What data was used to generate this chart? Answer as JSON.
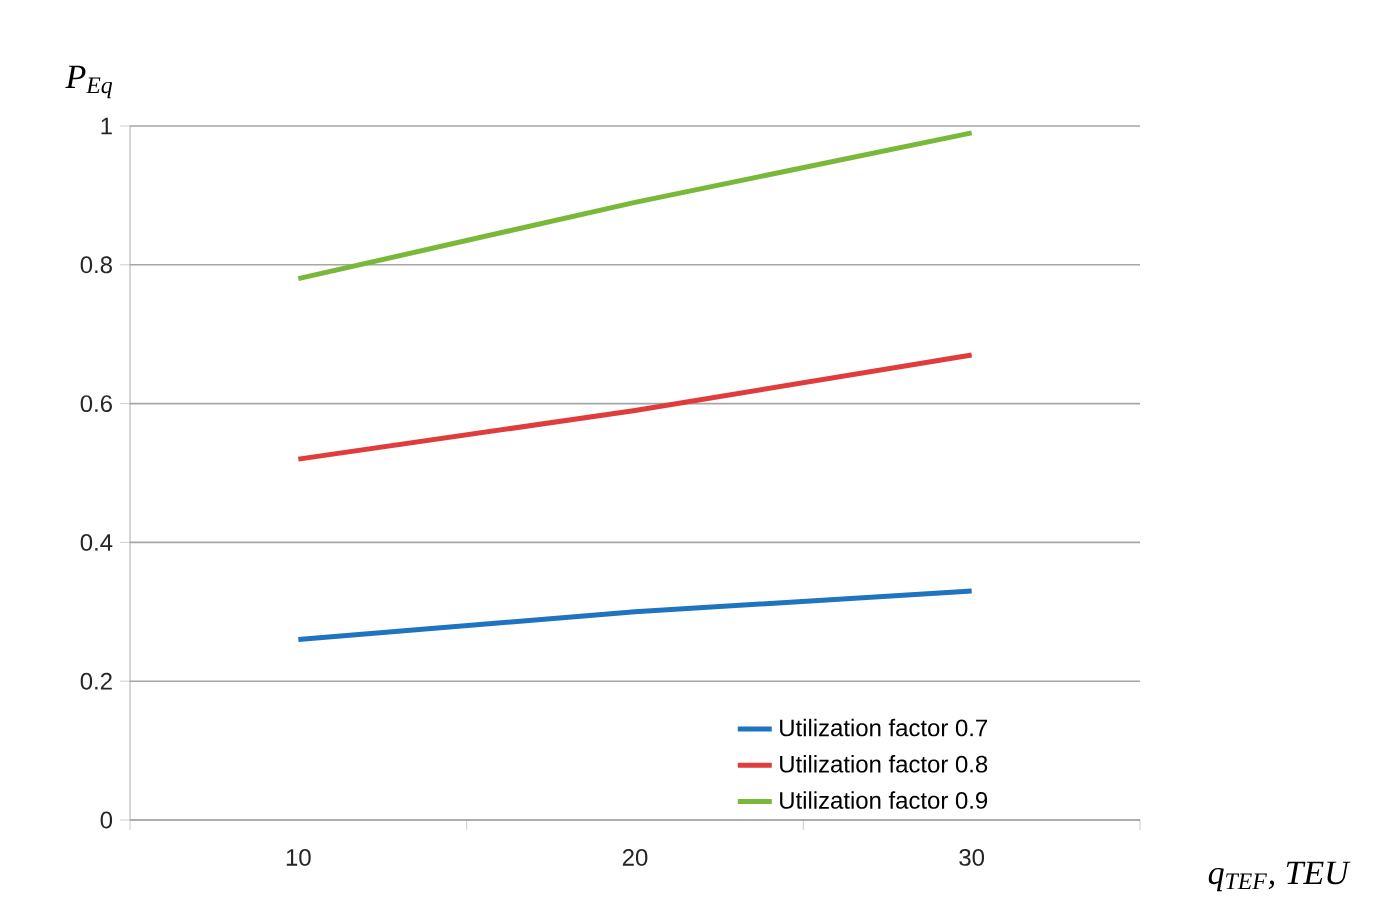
{
  "chart_data": {
    "type": "line",
    "xlabel": "q$_{TEF}$, TEU",
    "ylabel": "P$_{Eq}$",
    "categories": [
      "10",
      "20",
      "30"
    ],
    "series": [
      {
        "name": "Utilization factor 0.7",
        "color": "#1f74c0",
        "values": [
          0.26,
          0.3,
          0.33
        ]
      },
      {
        "name": "Utilization factor 0.8",
        "color": "#e03c3c",
        "values": [
          0.52,
          0.59,
          0.67
        ]
      },
      {
        "name": "Utilization factor 0.9",
        "color": "#7ab83a",
        "values": [
          0.78,
          0.89,
          0.99
        ]
      }
    ],
    "ylim": [
      0,
      1
    ],
    "yticks": [
      0,
      0.2,
      0.4,
      0.6,
      0.8,
      1
    ],
    "grid": "y",
    "legend": "bottom right",
    "marker": "none",
    "line_style": "solid"
  }
}
